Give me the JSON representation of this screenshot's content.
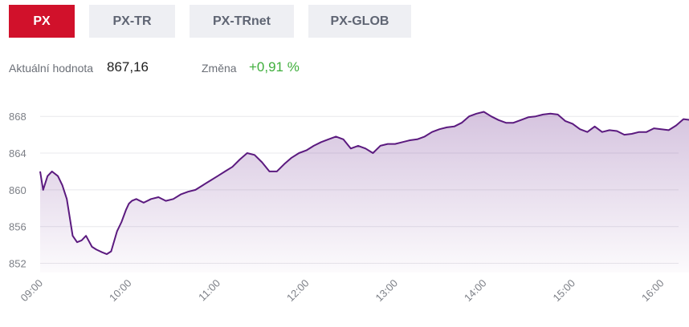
{
  "tabs": [
    {
      "label": "PX",
      "active": true
    },
    {
      "label": "PX-TR",
      "active": false
    },
    {
      "label": "PX-TRnet",
      "active": false
    },
    {
      "label": "PX-GLOB",
      "active": false
    }
  ],
  "stats": {
    "current_label": "Aktuální hodnota",
    "current_value": "867,16",
    "change_label": "Změna",
    "change_value": "+0,91 %"
  },
  "colors": {
    "accent": "#d1112b",
    "line": "#5b1a7f",
    "change_positive": "#3fae3c"
  },
  "chart_data": {
    "type": "area",
    "x_ticks": [
      "09:00",
      "10:00",
      "11:00",
      "12:00",
      "13:00",
      "14:00",
      "15:00",
      "16:00"
    ],
    "y_ticks": [
      "852",
      "856",
      "860",
      "864",
      "868"
    ],
    "ylim": [
      851,
      869.5
    ],
    "xlim": [
      "09:00",
      "16:25"
    ],
    "grid": true,
    "legend": "none",
    "series": [
      {
        "x": [
          "09:00",
          "09:02",
          "09:05",
          "09:08",
          "09:12",
          "09:15",
          "09:18",
          "09:22",
          "09:25",
          "09:28",
          "09:31",
          "09:35",
          "09:38",
          "09:42",
          "09:45",
          "09:48",
          "09:52",
          "09:55",
          "09:58",
          "10:00",
          "10:02",
          "10:05",
          "10:10",
          "10:15",
          "10:20",
          "10:25",
          "10:30",
          "10:35",
          "10:40",
          "10:45",
          "10:50",
          "10:55",
          "11:00",
          "11:05",
          "11:10",
          "11:15",
          "11:20",
          "11:25",
          "11:30",
          "11:35",
          "11:40",
          "11:45",
          "11:50",
          "11:55",
          "12:00",
          "12:05",
          "12:10",
          "12:15",
          "12:20",
          "12:25",
          "12:30",
          "12:35",
          "12:40",
          "12:45",
          "12:50",
          "12:55",
          "13:00",
          "13:05",
          "13:10",
          "13:15",
          "13:20",
          "13:25",
          "13:30",
          "13:35",
          "13:40",
          "13:45",
          "13:50",
          "13:55",
          "14:00",
          "14:05",
          "14:10",
          "14:15",
          "14:20",
          "14:25",
          "14:30",
          "14:35",
          "14:40",
          "14:45",
          "14:50",
          "14:55",
          "15:00",
          "15:05",
          "15:10",
          "15:15",
          "15:20",
          "15:25",
          "15:30",
          "15:35",
          "15:40",
          "15:45",
          "15:50",
          "15:55",
          "16:00",
          "16:05",
          "16:10",
          "16:15",
          "16:20",
          "16:25"
        ],
        "y": [
          862.0,
          860.0,
          861.5,
          862.0,
          861.5,
          860.5,
          859.0,
          855.0,
          854.3,
          854.5,
          855.0,
          853.8,
          853.5,
          853.2,
          853.0,
          853.3,
          855.5,
          856.5,
          857.8,
          858.5,
          858.8,
          859.0,
          858.6,
          859.0,
          859.2,
          858.8,
          859.0,
          859.5,
          859.8,
          860.0,
          860.5,
          861.0,
          861.5,
          862.0,
          862.5,
          863.3,
          864.0,
          863.8,
          863.0,
          862.0,
          862.0,
          862.8,
          863.5,
          864.0,
          864.3,
          864.8,
          865.2,
          865.5,
          865.8,
          865.5,
          864.5,
          864.8,
          864.5,
          864.0,
          864.8,
          865.0,
          865.0,
          865.2,
          865.4,
          865.5,
          865.8,
          866.3,
          866.6,
          866.8,
          866.9,
          867.3,
          868.0,
          868.3,
          868.5,
          868.0,
          867.6,
          867.3,
          867.3,
          867.6,
          867.9,
          868.0,
          868.2,
          868.3,
          868.2,
          867.5,
          867.2,
          866.6,
          866.3,
          866.9,
          866.3,
          866.5,
          866.4,
          866.0,
          866.1,
          866.3,
          866.3,
          866.7,
          866.6,
          866.5,
          867.0,
          867.7,
          867.6,
          867.2
        ]
      }
    ]
  }
}
